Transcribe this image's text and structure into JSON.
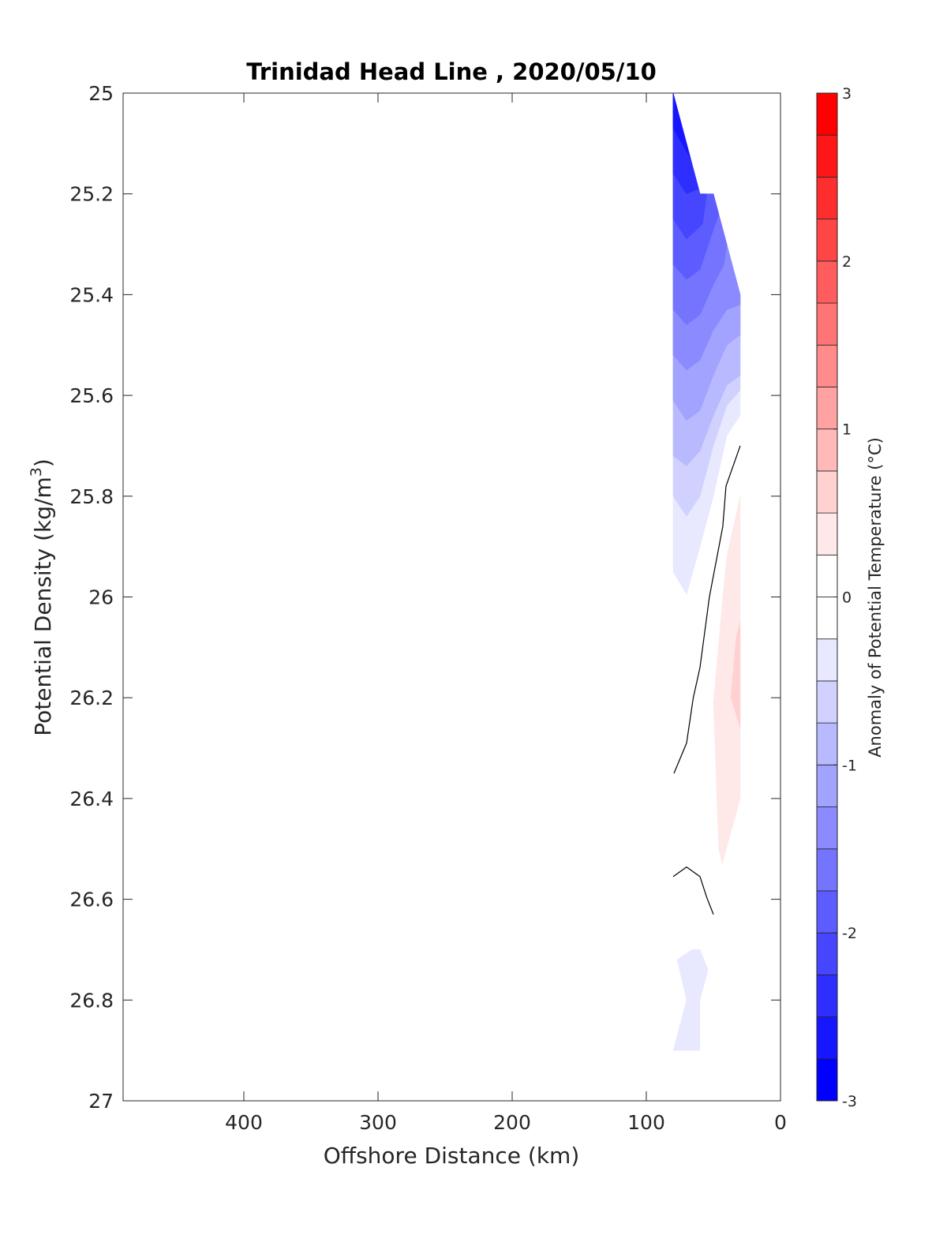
{
  "chart_data": {
    "type": "contourf",
    "title": "Trinidad Head Line , 2020/05/10",
    "xlabel": "Offshore Distance (km)",
    "ylabel_main": "Potential Density (kg/m",
    "ylabel_sup": "3",
    "ylabel_close": ")",
    "xlim": [
      490,
      0
    ],
    "ylim": [
      27,
      25
    ],
    "xticks": [
      400,
      300,
      200,
      100,
      0
    ],
    "xtick_labels": [
      "400",
      "300",
      "200",
      "100",
      "0"
    ],
    "yticks": [
      25,
      25.2,
      25.4,
      25.6,
      25.8,
      26,
      26.2,
      26.4,
      26.6,
      26.8,
      27
    ],
    "ytick_labels": [
      "25",
      "25.2",
      "25.4",
      "25.6",
      "25.8",
      "26",
      "26.2",
      "26.4",
      "26.6",
      "26.8",
      "27"
    ],
    "colorbar": {
      "label": "Anomaly of Potential Temperature (°C)",
      "range": [
        -3,
        3
      ],
      "step": 0.25,
      "ticks": [
        -3,
        -2,
        -1,
        0,
        1,
        2,
        3
      ],
      "tick_labels": [
        "-3",
        "-2",
        "-1",
        "0",
        "1",
        "2",
        "3"
      ],
      "neg_color": "#0000ff",
      "pos_color": "#ff0000",
      "zero_color": "#ffffff"
    },
    "filled_regions": [
      {
        "level": -0.5,
        "points": [
          [
            80,
            25
          ],
          [
            60,
            25.2
          ],
          [
            50,
            25.2
          ],
          [
            30,
            25.4
          ],
          [
            30,
            25.64
          ],
          [
            35,
            25.66
          ],
          [
            40,
            25.68
          ],
          [
            45,
            25.74
          ],
          [
            50,
            25.8
          ],
          [
            60,
            25.9
          ],
          [
            70,
            25.995
          ],
          [
            80,
            25.95
          ]
        ]
      },
      {
        "level": -0.5,
        "points": [
          [
            77,
            26.72
          ],
          [
            66,
            26.7
          ],
          [
            60,
            26.7
          ],
          [
            54,
            26.74
          ],
          [
            60,
            26.8
          ],
          [
            60,
            26.9
          ],
          [
            80,
            26.9
          ],
          [
            70,
            26.8
          ]
        ]
      },
      {
        "level": -0.75,
        "points": [
          [
            80,
            25
          ],
          [
            60,
            25.2
          ],
          [
            50,
            25.2
          ],
          [
            30,
            25.4
          ],
          [
            30,
            25.59
          ],
          [
            40,
            25.62
          ],
          [
            50,
            25.7
          ],
          [
            60,
            25.8
          ],
          [
            70,
            25.84
          ],
          [
            80,
            25.8
          ]
        ]
      },
      {
        "level": -1.0,
        "points": [
          [
            80,
            25
          ],
          [
            60,
            25.2
          ],
          [
            50,
            25.2
          ],
          [
            30,
            25.4
          ],
          [
            30,
            25.56
          ],
          [
            40,
            25.58
          ],
          [
            50,
            25.64
          ],
          [
            60,
            25.71
          ],
          [
            70,
            25.74
          ],
          [
            80,
            25.72
          ]
        ]
      },
      {
        "level": -1.25,
        "points": [
          [
            80,
            25
          ],
          [
            60,
            25.2
          ],
          [
            50,
            25.2
          ],
          [
            30,
            25.4
          ],
          [
            30,
            25.48
          ],
          [
            40,
            25.5
          ],
          [
            50,
            25.56
          ],
          [
            60,
            25.63
          ],
          [
            70,
            25.65
          ],
          [
            80,
            25.61
          ]
        ]
      },
      {
        "level": -1.5,
        "points": [
          [
            80,
            25
          ],
          [
            60,
            25.2
          ],
          [
            50,
            25.2
          ],
          [
            30,
            25.4
          ],
          [
            30,
            25.42
          ],
          [
            40,
            25.43
          ],
          [
            50,
            25.47
          ],
          [
            60,
            25.53
          ],
          [
            70,
            25.55
          ],
          [
            80,
            25.52
          ]
        ]
      },
      {
        "level": -1.75,
        "points": [
          [
            80,
            25
          ],
          [
            60,
            25.2
          ],
          [
            50,
            25.2
          ],
          [
            40,
            25.3
          ],
          [
            42,
            25.34
          ],
          [
            50,
            25.38
          ],
          [
            60,
            25.44
          ],
          [
            70,
            25.46
          ],
          [
            80,
            25.43
          ]
        ]
      },
      {
        "level": -2.0,
        "points": [
          [
            80,
            25
          ],
          [
            60,
            25.2
          ],
          [
            50,
            25.2
          ],
          [
            46,
            25.24
          ],
          [
            60,
            25.35
          ],
          [
            70,
            25.37
          ],
          [
            80,
            25.34
          ]
        ]
      },
      {
        "level": -2.25,
        "points": [
          [
            80,
            25
          ],
          [
            60,
            25.2
          ],
          [
            55,
            25.2
          ],
          [
            58,
            25.26
          ],
          [
            70,
            25.29
          ],
          [
            80,
            25.25
          ]
        ]
      },
      {
        "level": -2.5,
        "points": [
          [
            80,
            25
          ],
          [
            61,
            25.19
          ],
          [
            70,
            25.2
          ],
          [
            80,
            25.16
          ]
        ]
      },
      {
        "level": -2.75,
        "points": [
          [
            80,
            25
          ],
          [
            67,
            25.13
          ],
          [
            80,
            25.07
          ]
        ]
      },
      {
        "level": 0.25,
        "points": [
          [
            30,
            25.8
          ],
          [
            40,
            25.92
          ],
          [
            43,
            26.0
          ],
          [
            50,
            26.21
          ],
          [
            46,
            26.5
          ],
          [
            43.5,
            26.53
          ],
          [
            30,
            26.4
          ]
        ]
      },
      {
        "level": 0.5,
        "points": [
          [
            30,
            26.05
          ],
          [
            33,
            26.08
          ],
          [
            37,
            26.2
          ],
          [
            30,
            26.26
          ]
        ]
      }
    ],
    "zero_contours": [
      [
        [
          30,
          25.7
        ],
        [
          40.6,
          25.78
        ],
        [
          43,
          25.86
        ],
        [
          53,
          26.0
        ],
        [
          60,
          26.14
        ],
        [
          65,
          26.2
        ],
        [
          70,
          26.29
        ],
        [
          79.4,
          26.35
        ]
      ],
      [
        [
          80,
          26.555
        ],
        [
          70,
          26.536
        ],
        [
          60,
          26.555
        ],
        [
          55,
          26.596
        ],
        [
          50,
          26.63
        ]
      ]
    ]
  }
}
